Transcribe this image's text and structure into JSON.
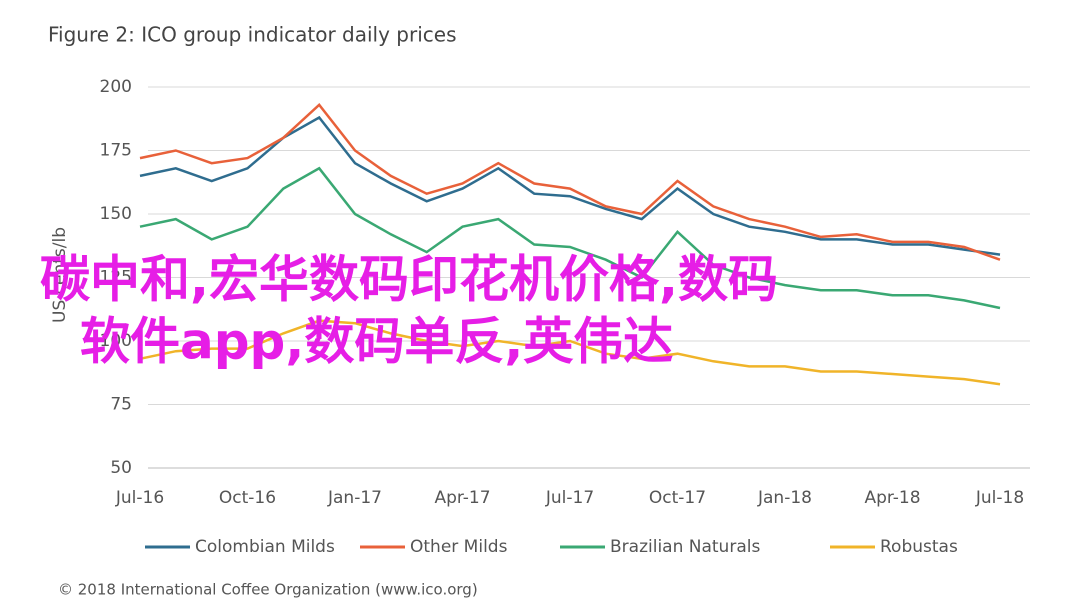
{
  "chart_data": {
    "type": "line",
    "title": "Figure 2: ICO group indicator daily prices",
    "y_label": "US cents/lb",
    "categories": [
      "Jul-16",
      null,
      null,
      "Oct-16",
      null,
      null,
      "Jan-17",
      null,
      null,
      "Apr-17",
      null,
      null,
      "Jul-17",
      null,
      null,
      "Oct-17",
      null,
      null,
      "Jan-18",
      null,
      null,
      "Apr-18",
      null,
      null,
      "Jul-18"
    ],
    "series": [
      {
        "name": "Colombian Milds",
        "color": "#2f6d8f",
        "values": [
          165,
          168,
          163,
          168,
          180,
          188,
          170,
          162,
          155,
          160,
          168,
          158,
          157,
          152,
          148,
          160,
          150,
          145,
          143,
          140,
          140,
          138,
          138,
          136,
          134
        ]
      },
      {
        "name": "Other Milds",
        "color": "#e8613a",
        "values": [
          172,
          175,
          170,
          172,
          180,
          193,
          175,
          165,
          158,
          162,
          170,
          162,
          160,
          153,
          150,
          163,
          153,
          148,
          145,
          141,
          142,
          139,
          139,
          137,
          132
        ]
      },
      {
        "name": "Brazilian Naturals",
        "color": "#3aa873",
        "values": [
          145,
          148,
          140,
          145,
          160,
          168,
          150,
          142,
          135,
          145,
          148,
          138,
          137,
          132,
          125,
          143,
          130,
          125,
          122,
          120,
          120,
          118,
          118,
          116,
          113
        ]
      },
      {
        "name": "Robustas",
        "color": "#f0b429",
        "values": [
          93,
          96,
          97,
          97,
          103,
          108,
          107,
          103,
          100,
          98,
          100,
          98,
          100,
          95,
          93,
          95,
          92,
          90,
          90,
          88,
          88,
          87,
          86,
          85,
          83
        ]
      }
    ],
    "ylim": [
      50,
      200
    ],
    "yticks": [
      50,
      75,
      100,
      125,
      150,
      175,
      200
    ],
    "grid": true,
    "legend": "bottom",
    "footer": "© 2018 International Coffee Organization (www.ico.org)"
  },
  "overlay": [
    "碳中和,宏华数码印花机价格,数码",
    "软件app,数码单反,英伟达"
  ]
}
